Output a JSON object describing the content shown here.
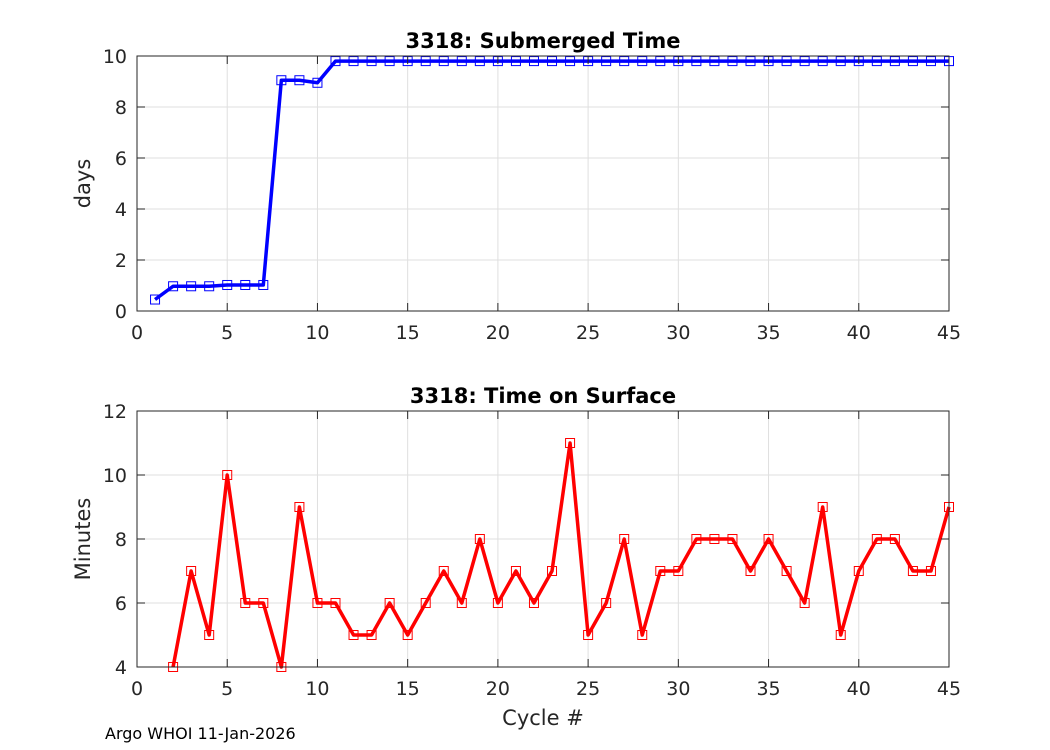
{
  "chart_data": [
    {
      "type": "line",
      "title": "3318: Submerged Time",
      "xlabel": "",
      "ylabel": "days",
      "xlim": [
        0,
        45
      ],
      "ylim": [
        0,
        10
      ],
      "xticks": [
        0,
        5,
        10,
        15,
        20,
        25,
        30,
        35,
        40,
        45
      ],
      "yticks": [
        0,
        2,
        4,
        6,
        8,
        10
      ],
      "grid": true,
      "marker": "square",
      "series": [
        {
          "color": "#0000ff",
          "x": [
            1,
            2,
            3,
            4,
            5,
            6,
            7,
            8,
            9,
            10,
            11,
            12,
            13,
            14,
            15,
            16,
            17,
            18,
            19,
            20,
            21,
            22,
            23,
            24,
            25,
            26,
            27,
            28,
            29,
            30,
            31,
            32,
            33,
            34,
            35,
            36,
            37,
            38,
            39,
            40,
            41,
            42,
            43,
            44,
            45
          ],
          "values": [
            0.45,
            0.97,
            0.97,
            0.97,
            1.02,
            1.02,
            1.02,
            9.05,
            9.05,
            8.95,
            9.8,
            9.8,
            9.8,
            9.8,
            9.8,
            9.8,
            9.8,
            9.8,
            9.8,
            9.8,
            9.8,
            9.8,
            9.8,
            9.8,
            9.8,
            9.8,
            9.8,
            9.8,
            9.8,
            9.8,
            9.8,
            9.8,
            9.8,
            9.8,
            9.8,
            9.8,
            9.8,
            9.8,
            9.8,
            9.8,
            9.8,
            9.8,
            9.8,
            9.8,
            9.8
          ]
        }
      ]
    },
    {
      "type": "line",
      "title": "3318: Time on Surface",
      "xlabel": "Cycle #",
      "ylabel": "Minutes",
      "xlim": [
        0,
        45
      ],
      "ylim": [
        4,
        12
      ],
      "xticks": [
        0,
        5,
        10,
        15,
        20,
        25,
        30,
        35,
        40,
        45
      ],
      "yticks": [
        4,
        6,
        8,
        10,
        12
      ],
      "grid": true,
      "marker": "square",
      "series": [
        {
          "color": "#ff0000",
          "x": [
            2,
            3,
            4,
            5,
            6,
            7,
            8,
            9,
            10,
            11,
            12,
            13,
            14,
            15,
            16,
            17,
            18,
            19,
            20,
            21,
            22,
            23,
            24,
            25,
            26,
            27,
            28,
            29,
            30,
            31,
            32,
            33,
            34,
            35,
            36,
            37,
            38,
            39,
            40,
            41,
            42,
            43,
            44,
            45
          ],
          "values": [
            4,
            7,
            5,
            10,
            6,
            6,
            4,
            9,
            6,
            6,
            5,
            5,
            6,
            5,
            6,
            7,
            6,
            8,
            6,
            7,
            6,
            7,
            11,
            5,
            6,
            8,
            5,
            7,
            7,
            8,
            8,
            8,
            7,
            8,
            7,
            6,
            9,
            5,
            7,
            8,
            8,
            7,
            7,
            9
          ]
        }
      ]
    }
  ],
  "footer": "Argo WHOI 11-Jan-2026"
}
